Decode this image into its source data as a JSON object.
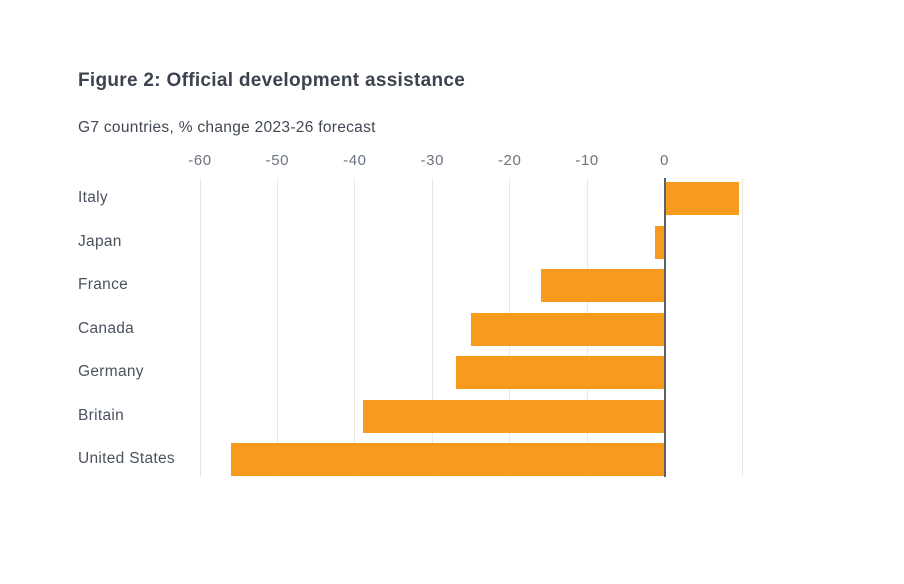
{
  "figure": {
    "title": "Figure 2: Official development assistance",
    "subtitle": "G7 countries, % change 2023-26 forecast"
  },
  "colors": {
    "bar": "#F89B1C",
    "zero_axis": "#5B616C",
    "gridline": "#E8E8E8",
    "title_text": "#3C4350",
    "subtitle_text": "#414854",
    "category_text": "#4A5260",
    "tick_text": "#6A7380",
    "background": "#FFFFFF"
  },
  "chart_data": {
    "type": "bar",
    "orientation": "horizontal",
    "title": "Figure 2: Official development assistance",
    "subtitle": "G7 countries, % change 2023-26 forecast",
    "categories": [
      "Italy",
      "Japan",
      "France",
      "Canada",
      "Germany",
      "Britain",
      "United States"
    ],
    "values": [
      9.6,
      -1.2,
      -16,
      -25,
      -27,
      -39,
      -56
    ],
    "value_unit": "% change 2023-26 forecast",
    "xlim": [
      -60,
      10
    ],
    "ticks": [
      {
        "value": -60,
        "label": "-60"
      },
      {
        "value": -50,
        "label": "-50"
      },
      {
        "value": -40,
        "label": "-40"
      },
      {
        "value": -30,
        "label": "-30"
      },
      {
        "value": -20,
        "label": "-20"
      },
      {
        "value": -10,
        "label": "-10"
      },
      {
        "value": 0,
        "label": "0"
      },
      {
        "value": 10,
        "label": ""
      }
    ],
    "grid": "vertical-gridlines-on",
    "legend": "none",
    "xlabel": "",
    "ylabel": ""
  }
}
